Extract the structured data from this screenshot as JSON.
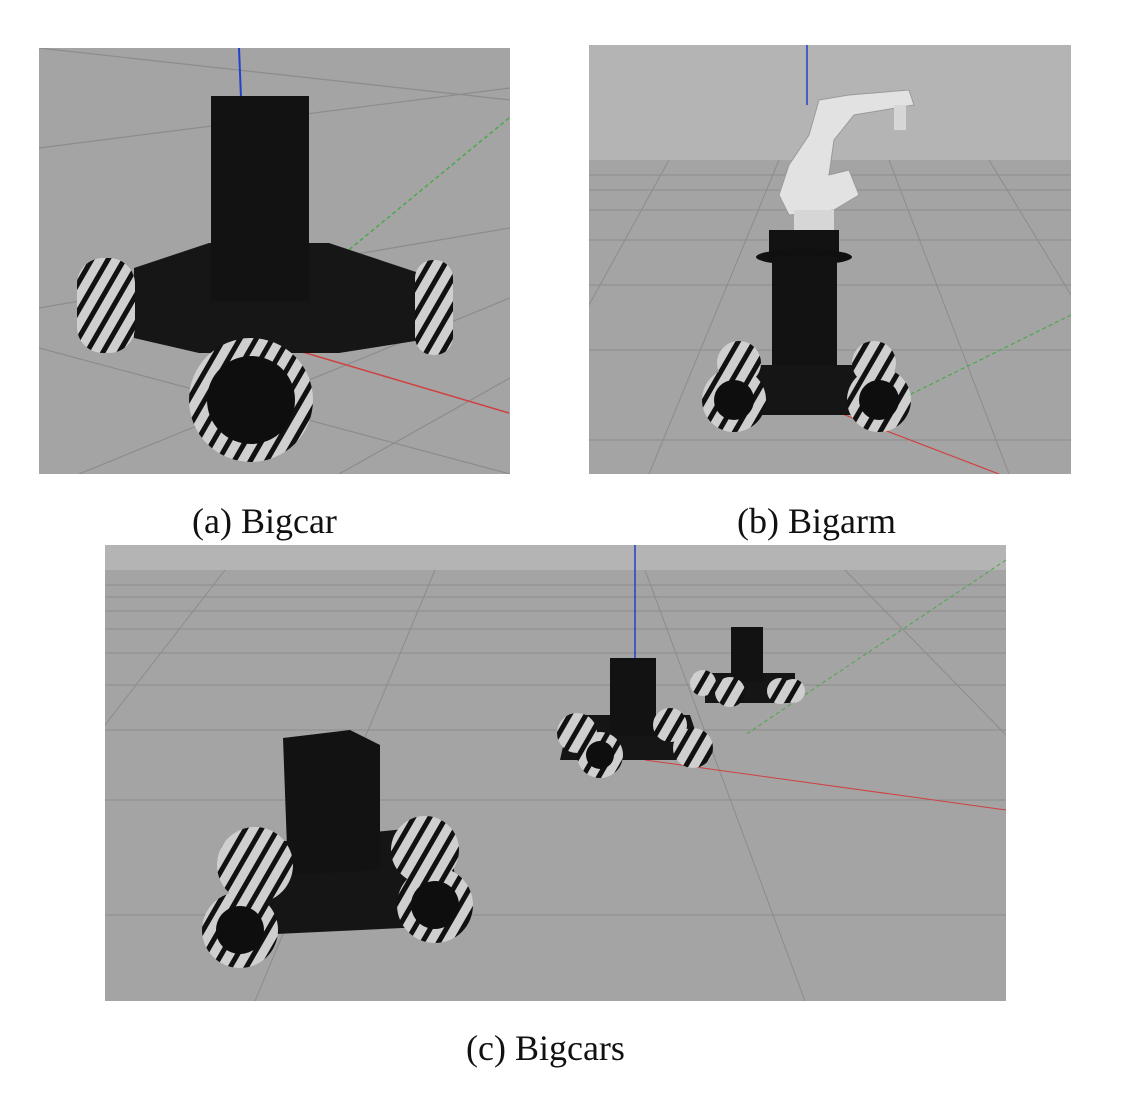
{
  "figure": {
    "panels": [
      {
        "id": "a",
        "caption": "(a) Bigcar"
      },
      {
        "id": "b",
        "caption": "(b) Bigarm"
      },
      {
        "id": "c",
        "caption": "(c) Bigcars"
      }
    ]
  },
  "colors": {
    "ground": "#a4a4a4",
    "sky": "#b4b4b4",
    "grid": "#8c8c8c",
    "robot_body": "#121212",
    "wheel_roller": "#cfcfcf",
    "axis_x": "#d04040",
    "axis_y": "#4aa84a",
    "axis_z": "#2040d0",
    "arm": "#e2e2e2"
  }
}
